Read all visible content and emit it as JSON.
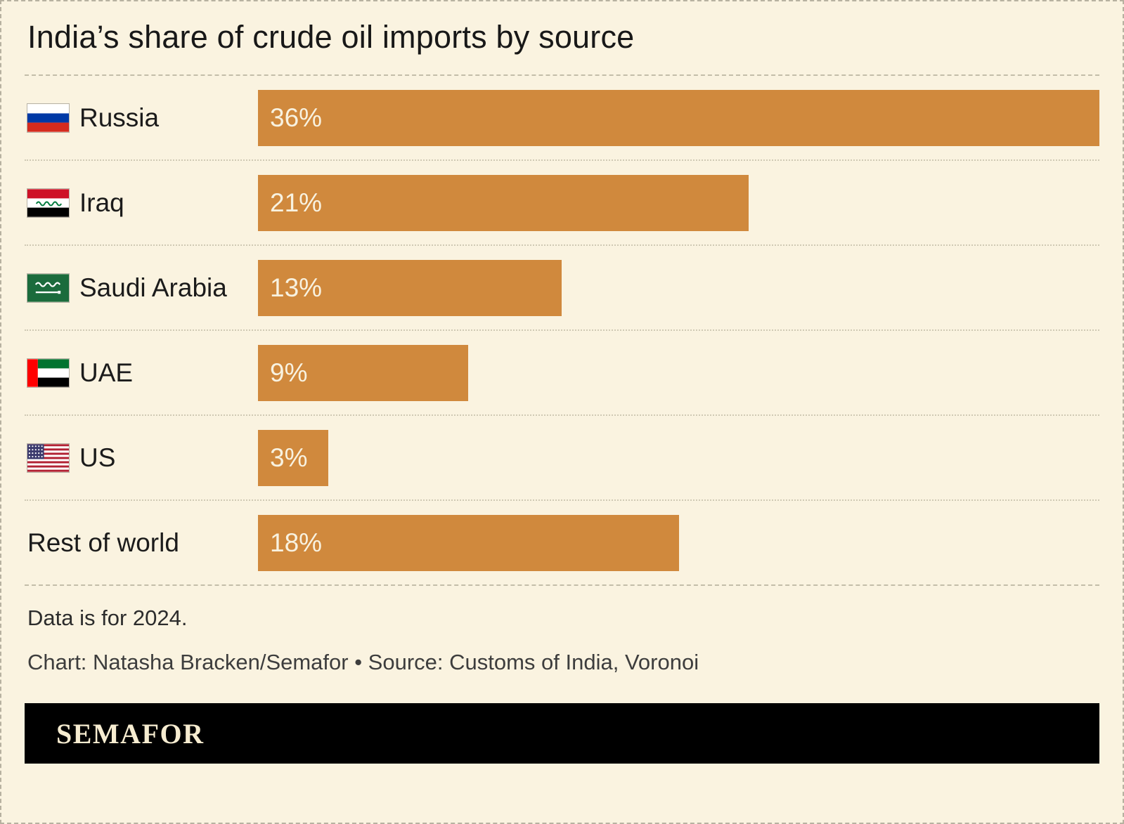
{
  "page": {
    "note": "Data is for 2024.",
    "credit": "Chart: Natasha Bracken/Semafor • Source: Customs of India, Voronoi",
    "brand": "SEMAFOR"
  },
  "colors": {
    "background": "#FAF3E0",
    "bar": "#D0893D",
    "text": "#1B1B1B"
  },
  "chart_data": {
    "type": "bar",
    "orientation": "horizontal",
    "title": "India’s share of crude oil imports by source",
    "categories": [
      "Russia",
      "Iraq",
      "Saudi Arabia",
      "UAE",
      "US",
      "Rest of world"
    ],
    "values": [
      36,
      21,
      13,
      9,
      3,
      18
    ],
    "value_labels": [
      "36%",
      "21%",
      "13%",
      "9%",
      "3%",
      "18%"
    ],
    "flag_icons": [
      "russia-flag-icon",
      "iraq-flag-icon",
      "saudi-arabia-flag-icon",
      "uae-flag-icon",
      "us-flag-icon",
      null
    ],
    "unit": "%",
    "xlim": [
      0,
      36
    ],
    "grid": false,
    "legend": false
  }
}
